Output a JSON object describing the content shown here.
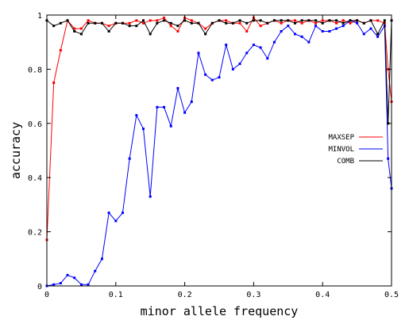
{
  "chart_data": {
    "type": "line",
    "title": "",
    "xlabel": "minor allele frequency",
    "ylabel": "accuracy",
    "xlim": [
      0,
      0.5
    ],
    "ylim": [
      0,
      1
    ],
    "x_ticks": [
      0,
      0.1,
      0.2,
      0.3,
      0.4,
      0.5
    ],
    "x_tick_labels": [
      "0",
      "0.1",
      "0.2",
      "0.3",
      "0.4",
      "0.5"
    ],
    "y_ticks": [
      0,
      0.2,
      0.4,
      0.6,
      0.8,
      1
    ],
    "y_tick_labels": [
      "0",
      "0.2",
      "0.4",
      "0.6",
      "0.8",
      "1"
    ],
    "grid": false,
    "legend_position": "right",
    "x": [
      0,
      0.01,
      0.02,
      0.03,
      0.04,
      0.05,
      0.06,
      0.07,
      0.08,
      0.09,
      0.1,
      0.11,
      0.12,
      0.13,
      0.14,
      0.15,
      0.16,
      0.17,
      0.18,
      0.19,
      0.2,
      0.21,
      0.22,
      0.23,
      0.24,
      0.25,
      0.26,
      0.27,
      0.28,
      0.29,
      0.3,
      0.31,
      0.32,
      0.33,
      0.34,
      0.35,
      0.36,
      0.37,
      0.38,
      0.39,
      0.4,
      0.41,
      0.42,
      0.43,
      0.44,
      0.45,
      0.46,
      0.47,
      0.48,
      0.49,
      0.495,
      0.5
    ],
    "series": [
      {
        "name": "MAXSEP",
        "color": "#ff0000",
        "values": [
          0.17,
          0.75,
          0.87,
          0.98,
          0.95,
          0.95,
          0.98,
          0.97,
          0.97,
          0.96,
          0.97,
          0.97,
          0.97,
          0.98,
          0.97,
          0.98,
          0.98,
          0.99,
          0.96,
          0.94,
          0.99,
          0.98,
          0.97,
          0.95,
          0.97,
          0.98,
          0.98,
          0.97,
          0.97,
          0.94,
          0.99,
          0.96,
          0.97,
          0.98,
          0.97,
          0.98,
          0.98,
          0.97,
          0.98,
          0.97,
          0.98,
          0.98,
          0.97,
          0.98,
          0.97,
          0.98,
          0.97,
          0.98,
          0.98,
          0.97,
          0.8,
          0.68
        ]
      },
      {
        "name": "MINVOL",
        "color": "#0000ff",
        "values": [
          0.0,
          0.005,
          0.01,
          0.04,
          0.03,
          0.005,
          0.005,
          0.055,
          0.1,
          0.27,
          0.24,
          0.27,
          0.47,
          0.63,
          0.58,
          0.33,
          0.66,
          0.66,
          0.59,
          0.73,
          0.64,
          0.68,
          0.86,
          0.78,
          0.76,
          0.77,
          0.89,
          0.8,
          0.82,
          0.86,
          0.89,
          0.88,
          0.84,
          0.9,
          0.94,
          0.96,
          0.93,
          0.92,
          0.9,
          0.96,
          0.94,
          0.94,
          0.95,
          0.96,
          0.98,
          0.97,
          0.93,
          0.95,
          0.92,
          0.96,
          0.47,
          0.36
        ]
      },
      {
        "name": "COMB",
        "color": "#000000",
        "values": [
          0.98,
          0.96,
          0.97,
          0.98,
          0.94,
          0.93,
          0.97,
          0.97,
          0.97,
          0.94,
          0.97,
          0.97,
          0.96,
          0.96,
          0.98,
          0.93,
          0.97,
          0.98,
          0.97,
          0.96,
          0.98,
          0.97,
          0.97,
          0.93,
          0.97,
          0.98,
          0.97,
          0.97,
          0.98,
          0.97,
          0.98,
          0.98,
          0.97,
          0.98,
          0.98,
          0.98,
          0.97,
          0.98,
          0.98,
          0.98,
          0.97,
          0.98,
          0.98,
          0.97,
          0.98,
          0.98,
          0.97,
          0.98,
          0.93,
          0.98,
          0.6,
          0.98
        ]
      }
    ]
  }
}
